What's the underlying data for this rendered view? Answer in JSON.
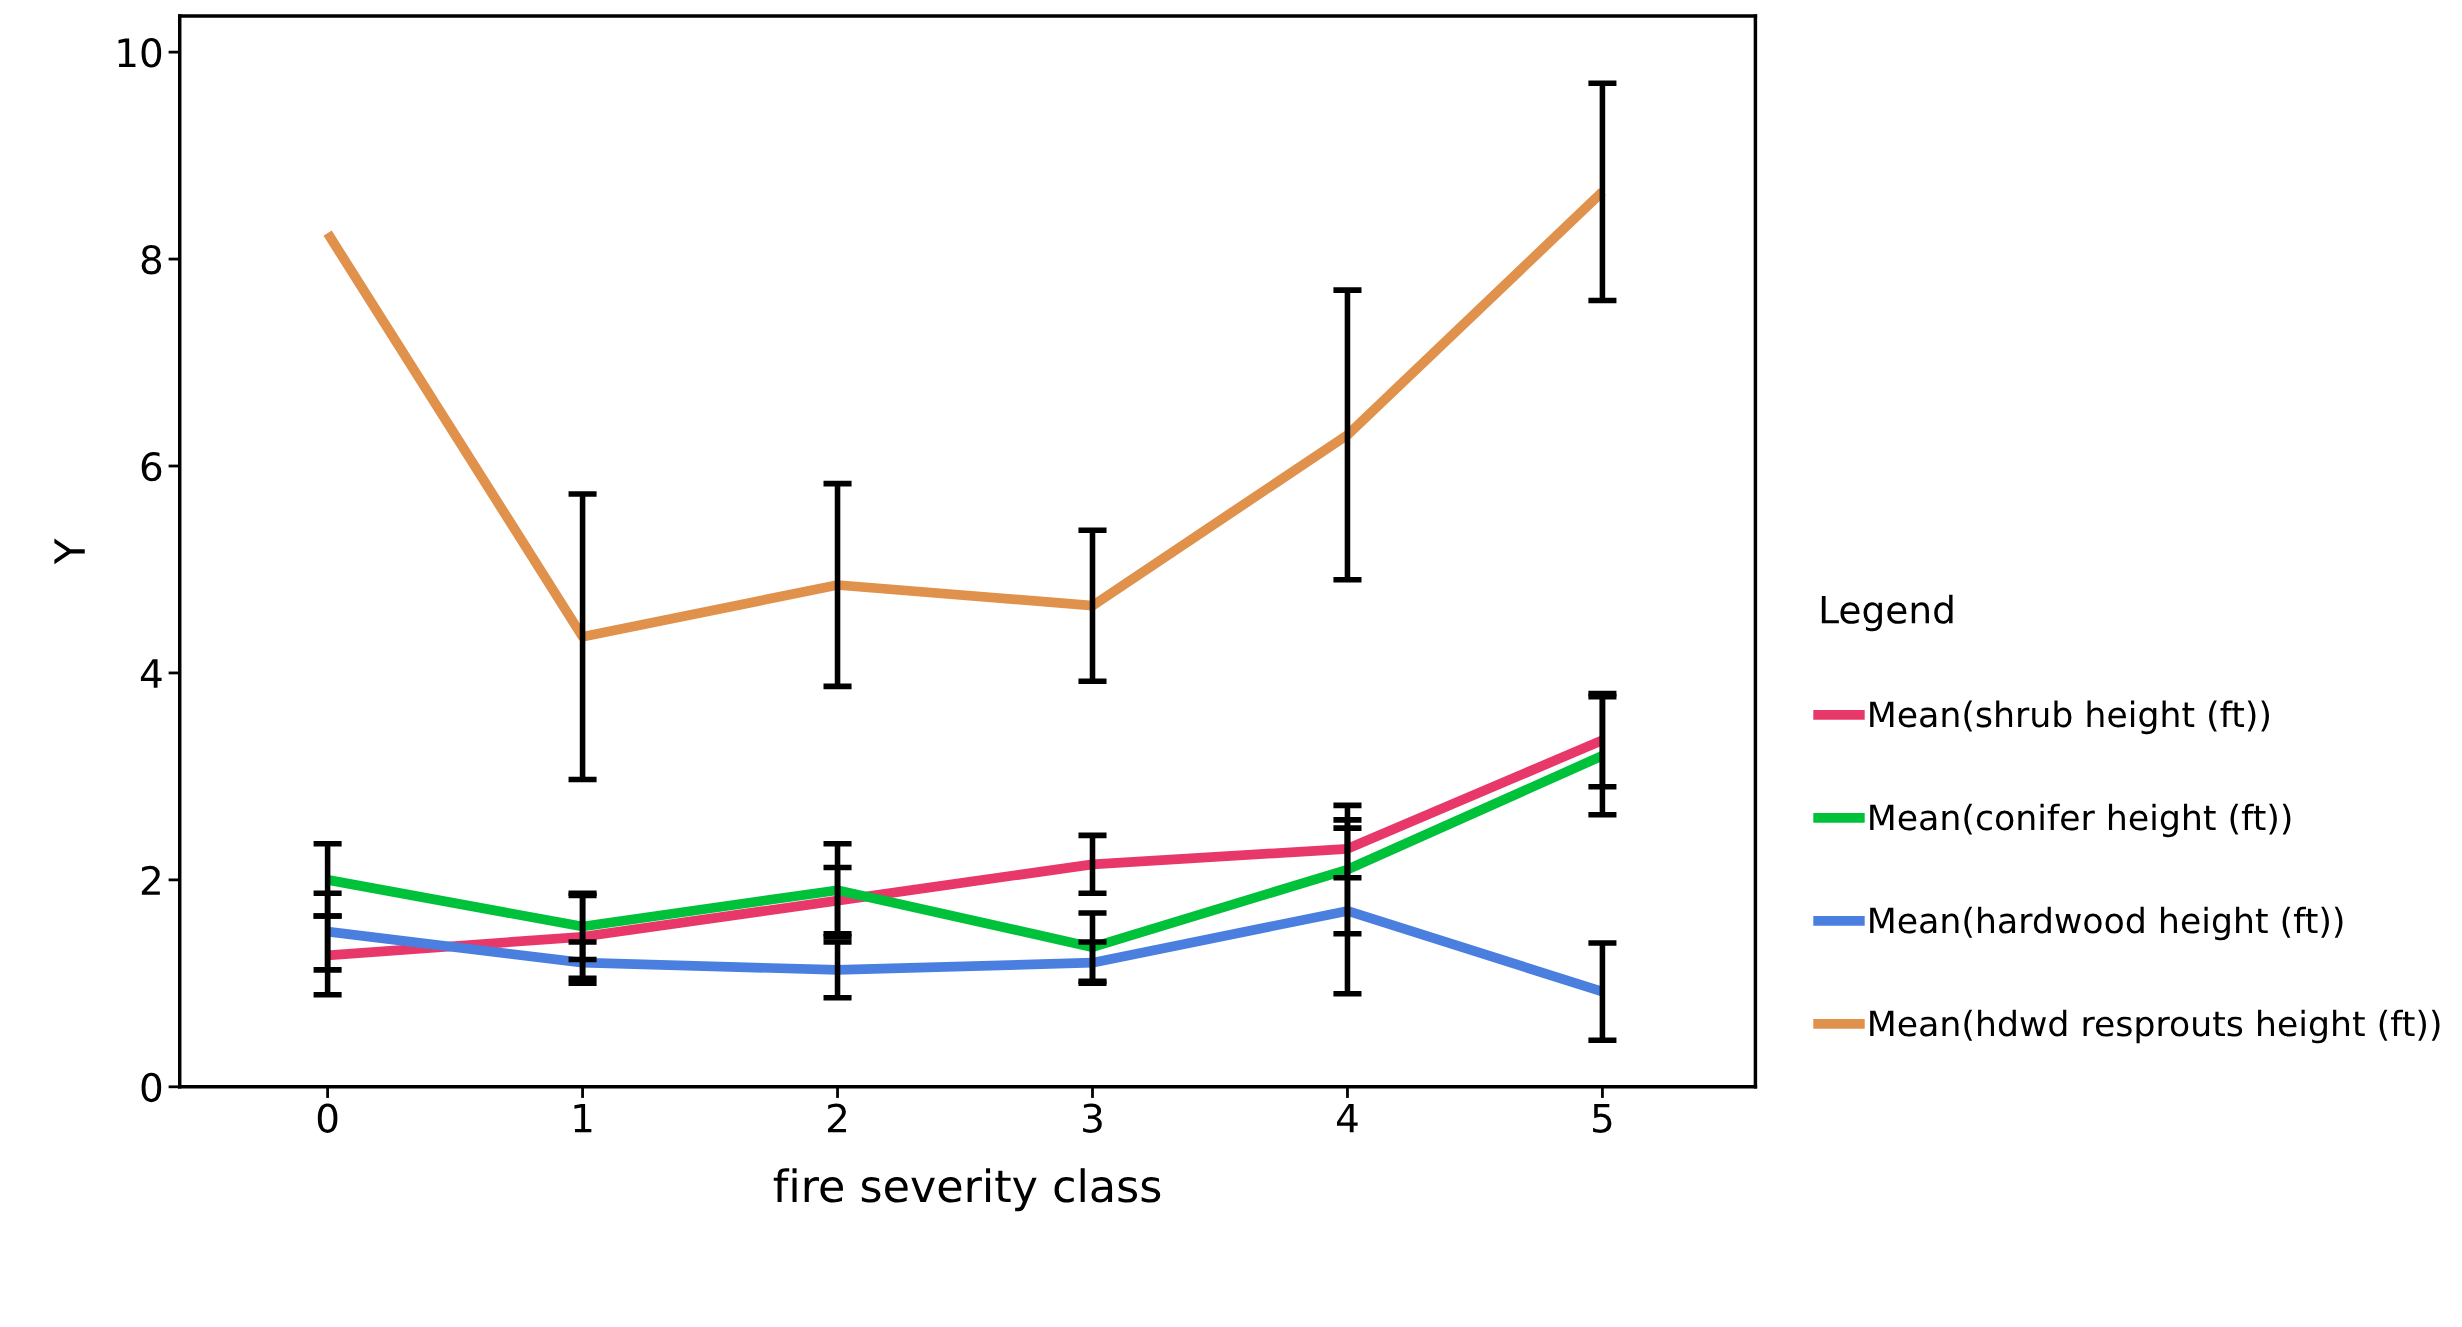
{
  "chart_data": {
    "type": "line",
    "xlabel": "fire severity class",
    "ylabel": "Y",
    "legend_title": "Legend",
    "categories": [
      "0",
      "1",
      "2",
      "3",
      "4",
      "5"
    ],
    "series": [
      {
        "name": "Mean(shrub height (ft))",
        "color": "#e8386a",
        "values": [
          1.27,
          1.45,
          1.8,
          2.15,
          2.3,
          3.35
        ],
        "errors": [
          0.38,
          0.4,
          0.32,
          0.28,
          0.28,
          0.45
        ]
      },
      {
        "name": "Mean(conifer height (ft))",
        "color": "#00c13a",
        "values": [
          2.0,
          1.55,
          1.9,
          1.35,
          2.1,
          3.2
        ],
        "errors": [
          0.35,
          0.32,
          0.45,
          0.33,
          0.62,
          0.57
        ]
      },
      {
        "name": "Mean(hardwood height (ft))",
        "color": "#4a7fe0",
        "values": [
          1.5,
          1.2,
          1.13,
          1.2,
          1.7,
          0.92
        ],
        "errors": [
          0.37,
          0.2,
          0.27,
          0.2,
          0.8,
          0.47
        ]
      },
      {
        "name": "Mean(hdwd resprouts height (ft))",
        "color": "#e0914b",
        "values": [
          8.25,
          4.35,
          4.85,
          4.65,
          6.3,
          8.65
        ],
        "errors": [
          null,
          1.38,
          0.98,
          0.73,
          1.4,
          1.05
        ]
      }
    ],
    "ylim": [
      0,
      10.35
    ],
    "yticks": [
      0,
      2,
      4,
      6,
      8,
      10
    ],
    "grid": false,
    "legend": "right",
    "line_style": "solid",
    "marker": "none"
  }
}
